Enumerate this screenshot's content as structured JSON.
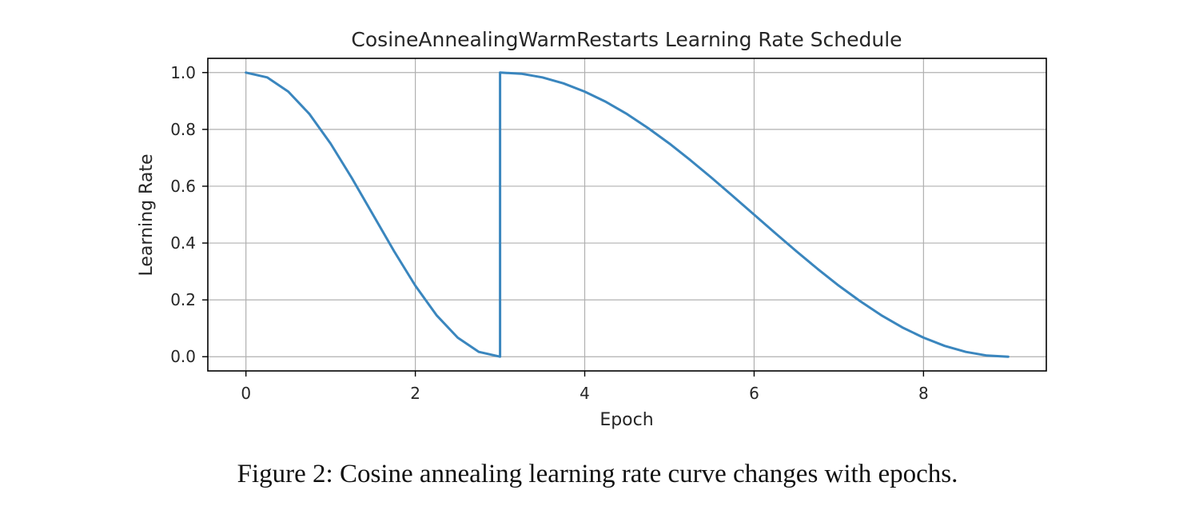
{
  "chart_data": {
    "type": "line",
    "title": "CosineAnnealingWarmRestarts Learning Rate Schedule",
    "xlabel": "Epoch",
    "ylabel": "Learning Rate",
    "xlim": [
      -0.45,
      9.45
    ],
    "ylim": [
      -0.05,
      1.05
    ],
    "xticks": [
      0,
      2,
      4,
      6,
      8
    ],
    "yticks": [
      0.0,
      0.2,
      0.4,
      0.6,
      0.8,
      1.0
    ],
    "xtick_labels": [
      "0",
      "2",
      "4",
      "6",
      "8"
    ],
    "ytick_labels": [
      "0.0",
      "0.2",
      "0.4",
      "0.6",
      "0.8",
      "1.0"
    ],
    "grid": true,
    "line_color": "#3a86be",
    "series": [
      {
        "x": [
          0,
          0.25,
          0.5,
          0.75,
          1,
          1.25,
          1.5,
          1.75,
          2,
          2.25,
          2.5,
          2.75,
          3,
          3,
          3.25,
          3.5,
          3.75,
          4,
          4.25,
          4.5,
          4.75,
          5,
          5.25,
          5.5,
          5.75,
          6,
          6.25,
          6.5,
          6.75,
          7,
          7.25,
          7.5,
          7.75,
          8,
          8.25,
          8.5,
          8.75,
          9
        ],
        "y": [
          1.0,
          0.983,
          0.933,
          0.854,
          0.75,
          0.629,
          0.5,
          0.371,
          0.25,
          0.146,
          0.067,
          0.017,
          0.0,
          1.0,
          0.996,
          0.983,
          0.962,
          0.933,
          0.897,
          0.854,
          0.804,
          0.75,
          0.691,
          0.629,
          0.565,
          0.5,
          0.435,
          0.371,
          0.309,
          0.25,
          0.196,
          0.146,
          0.103,
          0.067,
          0.038,
          0.017,
          0.004,
          0.0
        ]
      }
    ]
  },
  "caption": "Figure 2: Cosine annealing learning rate curve changes with epochs."
}
